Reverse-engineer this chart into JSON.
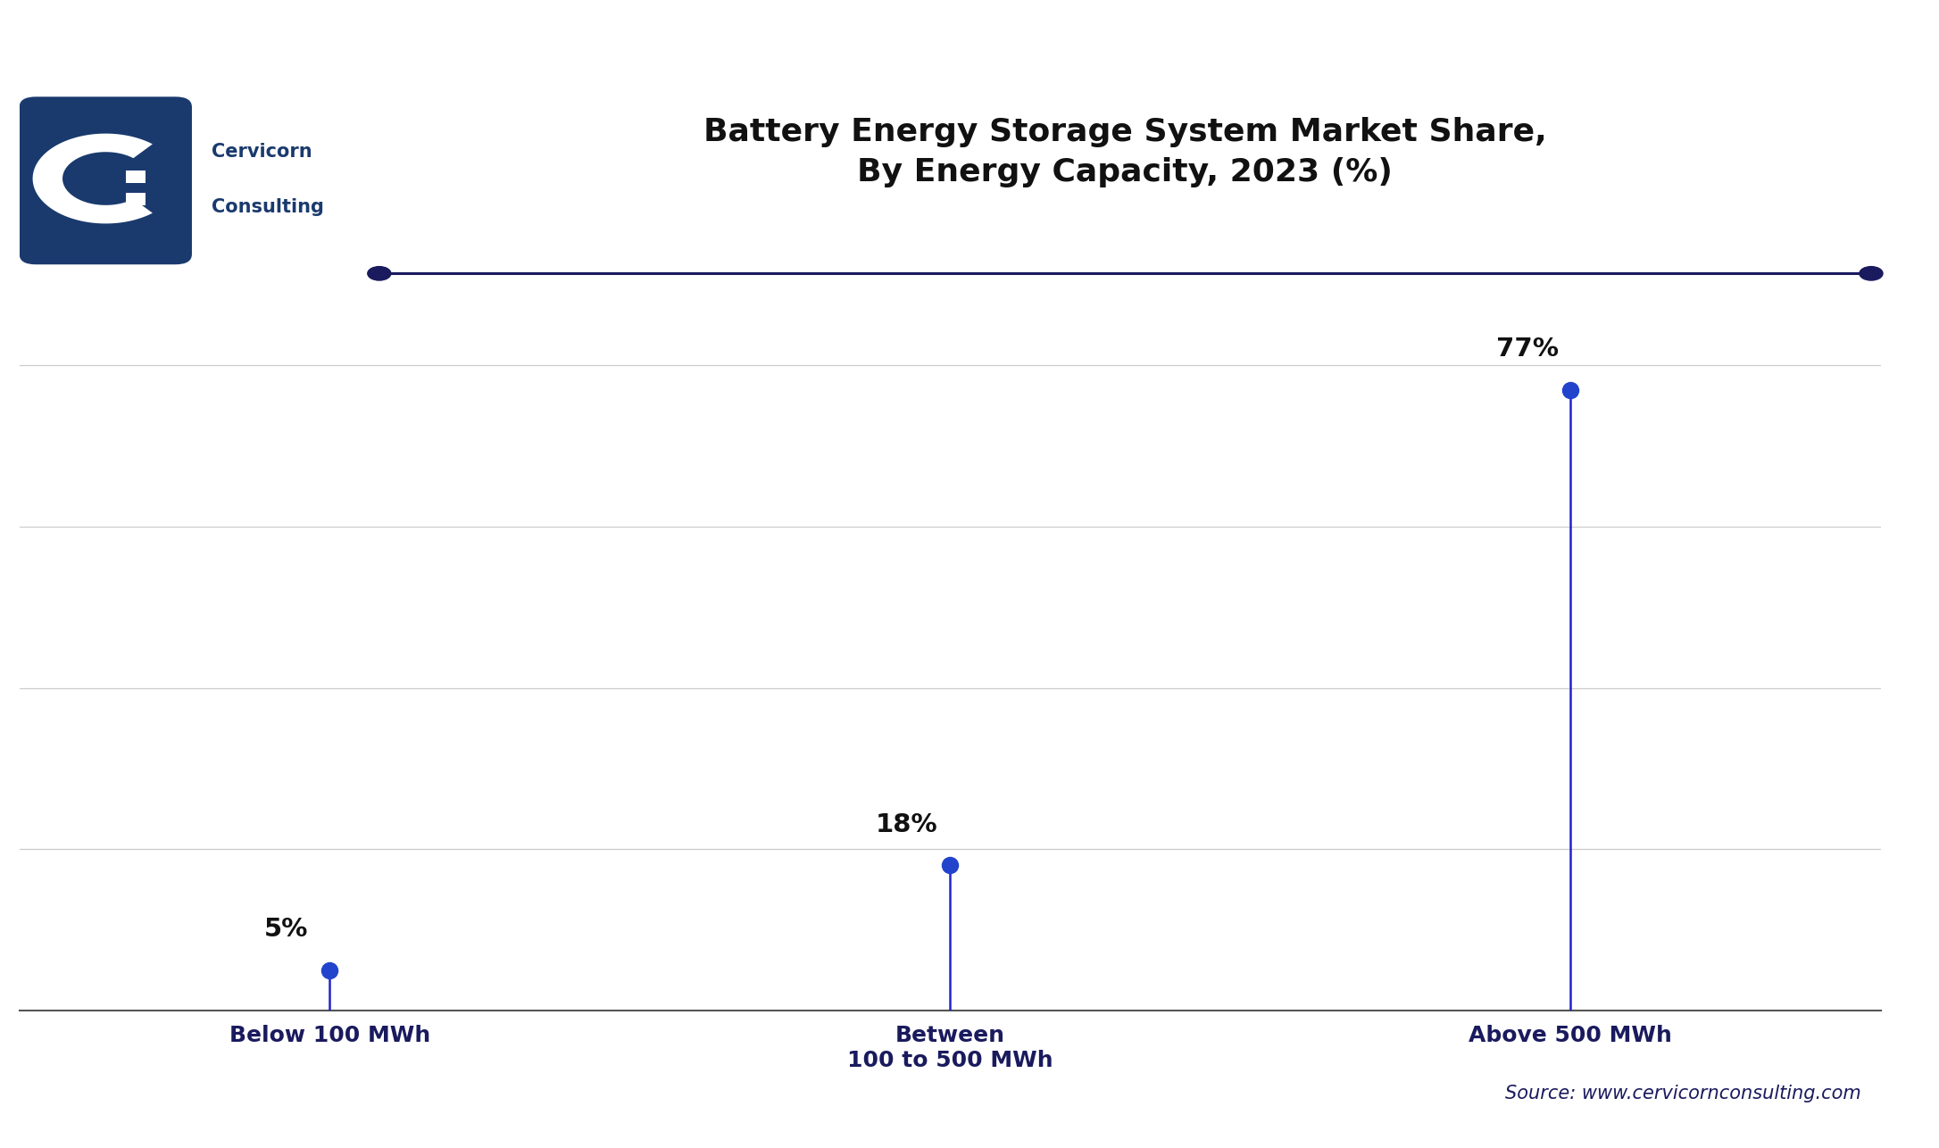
{
  "title_line1": "Battery Energy Storage System Market Share,",
  "title_line2": "By Energy Capacity, 2023 (%)",
  "categories": [
    "Below 100 MWh",
    "Between\n100 to 500 MWh",
    "Above 500 MWh"
  ],
  "values": [
    5,
    18,
    77
  ],
  "labels": [
    "5%",
    "18%",
    "77%"
  ],
  "line_color": "#2222cc",
  "marker_color": "#2244cc",
  "title_color": "#111111",
  "axis_line_color": "#555555",
  "grid_color": "#cccccc",
  "background_color": "#ffffff",
  "source_text": "Source: www.cervicornconsulting.com",
  "source_color": "#1a1a5e",
  "ylim": [
    0,
    90
  ],
  "figsize": [
    21.72,
    12.86
  ],
  "dpi": 100,
  "top_line_color": "#1a1a5e",
  "xlabel_color": "#1a1a5e",
  "label_color": "#111111",
  "logo_bg_color": "#1a3a6e",
  "logo_text_color": "#1a3a6e",
  "cervicorn_text": "Cervicorn",
  "consulting_text": "Consulting"
}
